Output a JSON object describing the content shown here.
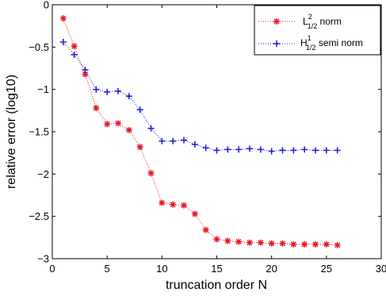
{
  "chart_data": {
    "type": "line",
    "xlabel": "truncation order N",
    "ylabel": "relative error (log10)",
    "xlim": [
      0,
      30
    ],
    "ylim": [
      -3,
      0
    ],
    "xticks": [
      "0",
      "5",
      "10",
      "15",
      "20",
      "25",
      "30"
    ],
    "yticks": [
      "0",
      "−0.5",
      "−1",
      "−1.5",
      "−2",
      "−2.5",
      "−3"
    ],
    "grid": false,
    "legend_position": "top-right",
    "x": [
      1,
      2,
      3,
      4,
      5,
      6,
      7,
      8,
      9,
      10,
      11,
      12,
      13,
      14,
      15,
      16,
      17,
      18,
      19,
      20,
      21,
      22,
      23,
      24,
      25,
      26
    ],
    "series": [
      {
        "name_main": "L",
        "name_sup": "2",
        "name_sub": "1/2",
        "name_suffix": " norm",
        "marker": "*",
        "color": "#e8141e",
        "values": [
          -0.16,
          -0.49,
          -0.82,
          -1.22,
          -1.41,
          -1.4,
          -1.48,
          -1.68,
          -1.99,
          -2.34,
          -2.36,
          -2.37,
          -2.47,
          -2.66,
          -2.77,
          -2.79,
          -2.8,
          -2.81,
          -2.81,
          -2.82,
          -2.82,
          -2.83,
          -2.83,
          -2.83,
          -2.83,
          -2.84
        ]
      },
      {
        "name_main": "H",
        "name_sup": "1",
        "name_sub": "1/2",
        "name_suffix": " semi norm",
        "marker": "+",
        "color": "#1a1acd",
        "values": [
          -0.44,
          -0.59,
          -0.77,
          -1.0,
          -1.03,
          -1.02,
          -1.08,
          -1.24,
          -1.46,
          -1.61,
          -1.61,
          -1.6,
          -1.65,
          -1.69,
          -1.72,
          -1.71,
          -1.71,
          -1.7,
          -1.71,
          -1.73,
          -1.72,
          -1.72,
          -1.71,
          -1.72,
          -1.72,
          -1.72
        ]
      }
    ]
  }
}
